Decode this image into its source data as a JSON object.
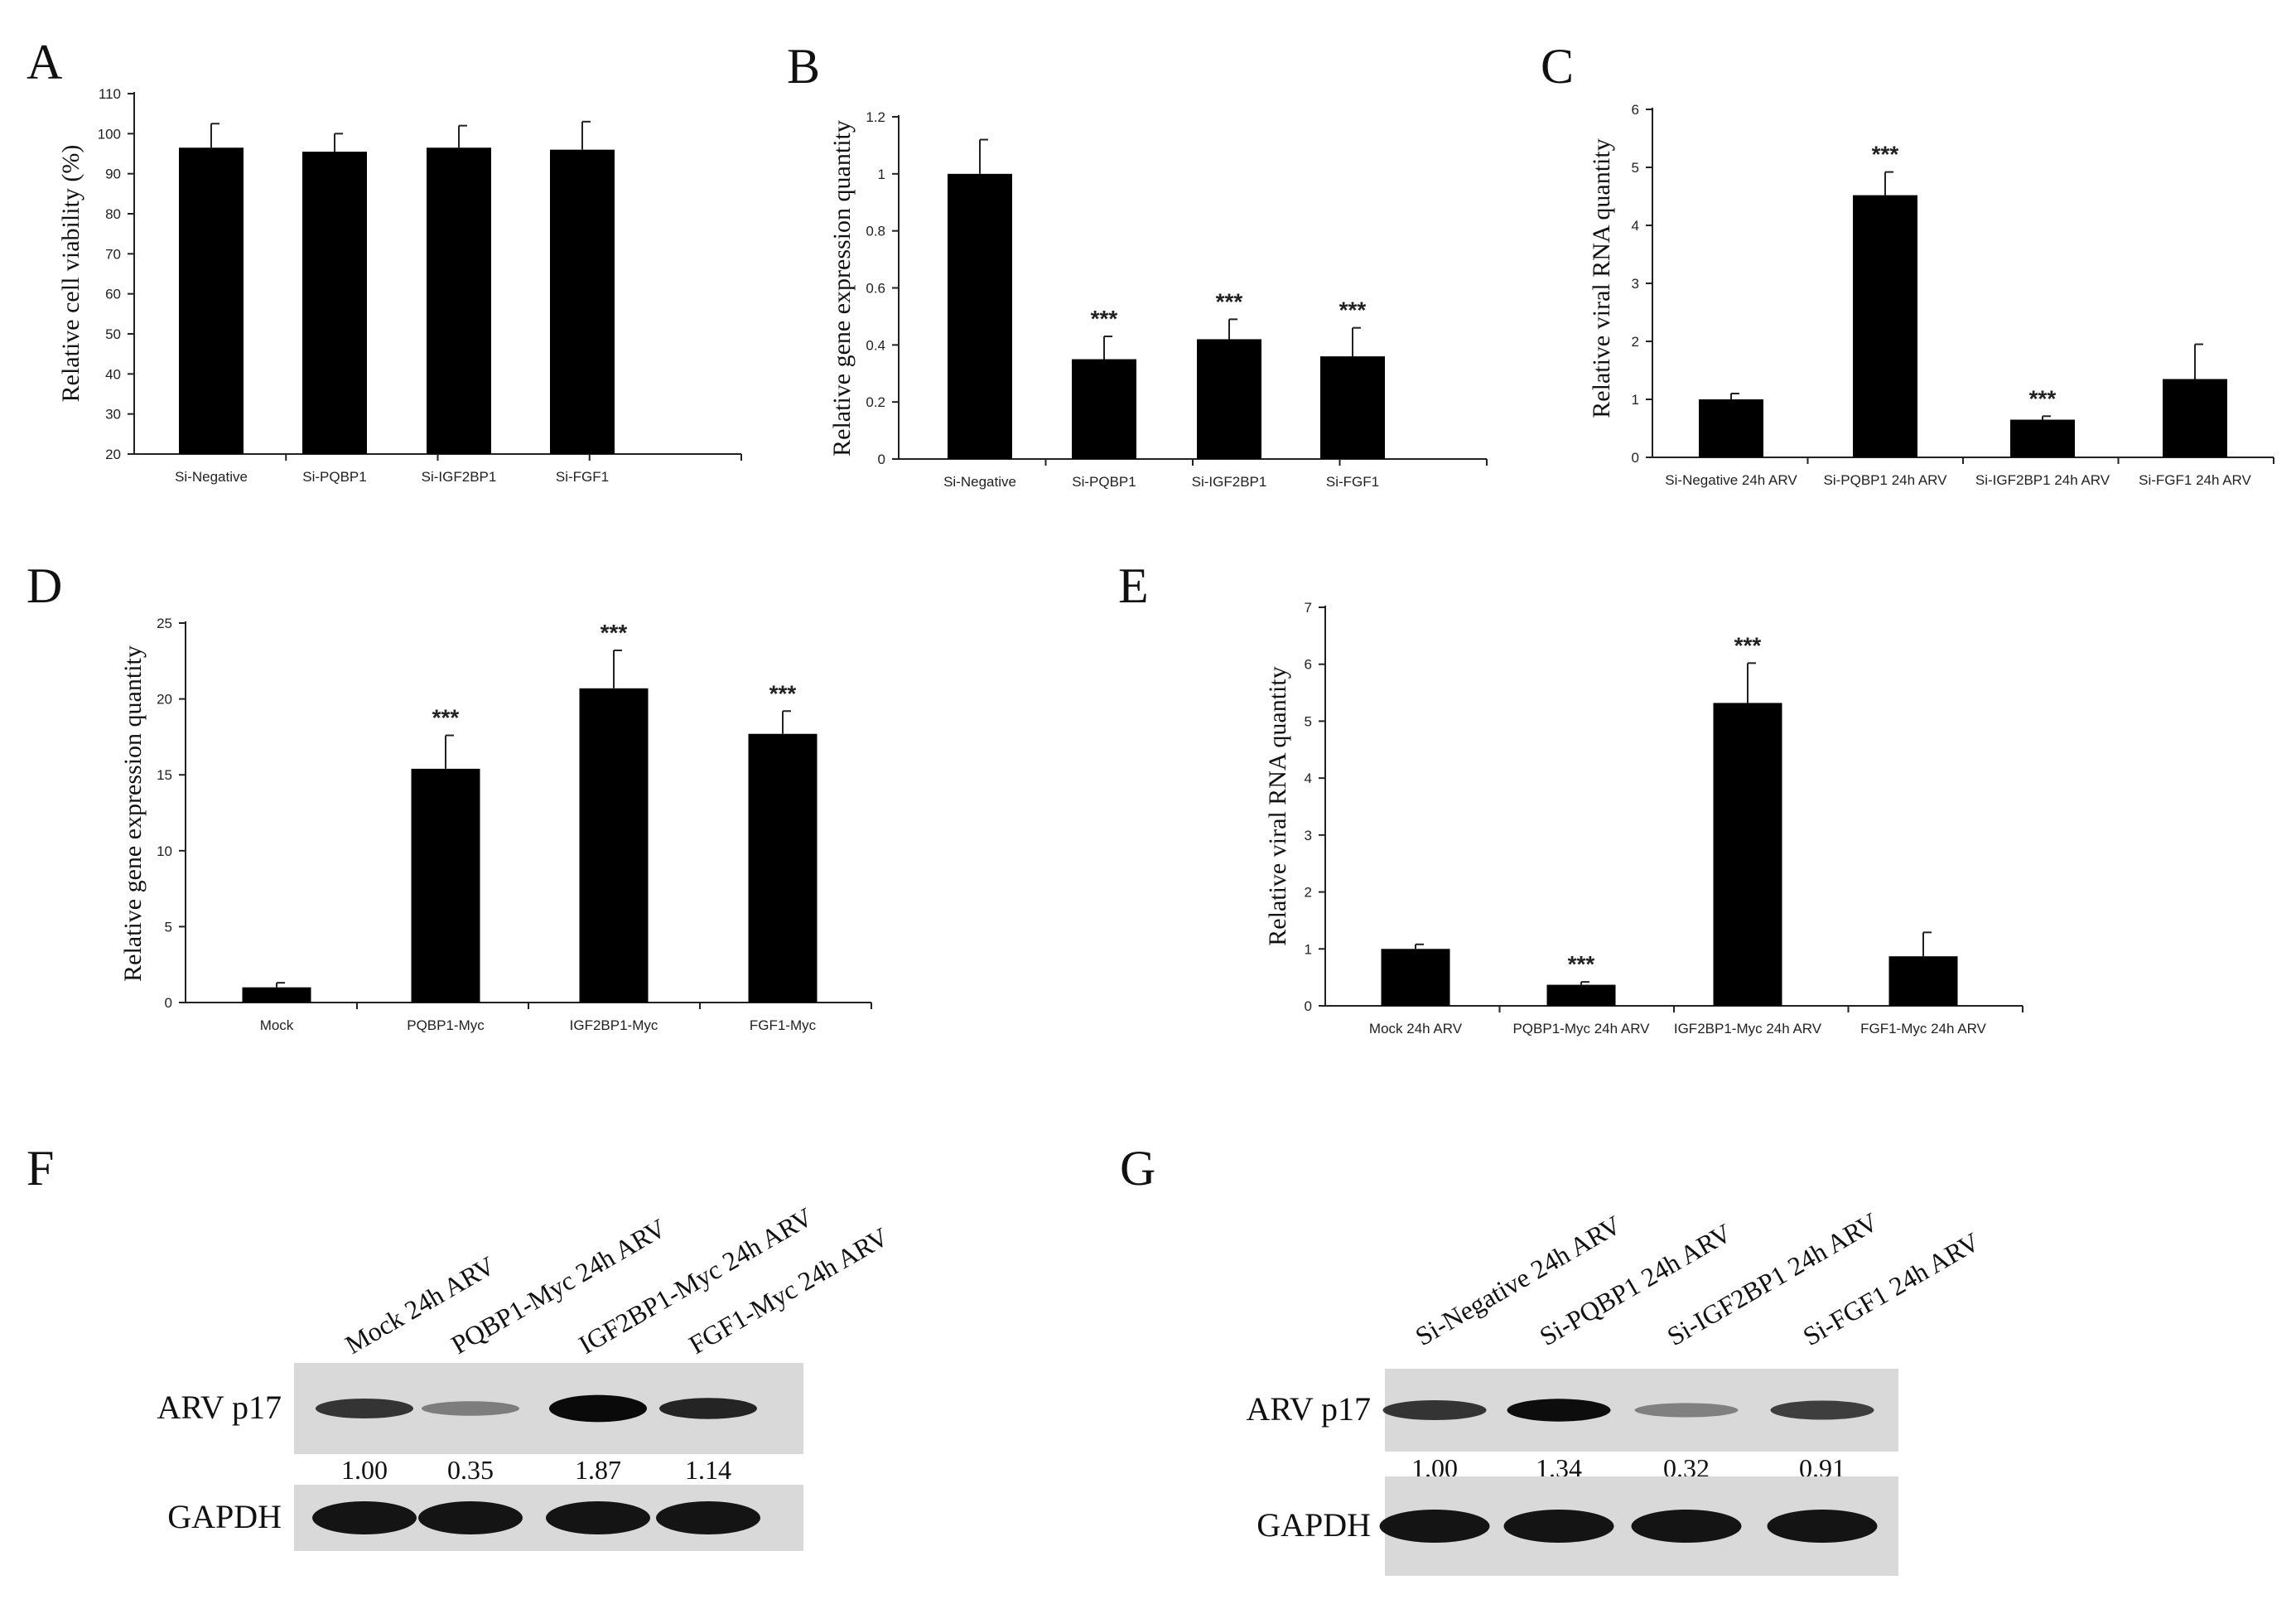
{
  "chart_data": [
    {
      "id": "A",
      "type": "bar",
      "panel_label": "A",
      "ylabel": "Relative cell viability (%)",
      "ylim": [
        20,
        110
      ],
      "yticks": [
        20,
        30,
        40,
        50,
        60,
        70,
        80,
        90,
        100,
        110
      ],
      "categories": [
        "Si-Negative",
        "Si-PQBP1",
        "Si-IGF2BP1",
        "Si-FGF1"
      ],
      "values": [
        96.5,
        95.5,
        96.5,
        96
      ],
      "errors": [
        6,
        4.5,
        5.5,
        7
      ],
      "significance": [
        "",
        "",
        "",
        ""
      ]
    },
    {
      "id": "B",
      "type": "bar",
      "panel_label": "B",
      "ylabel": "Relative gene expression  quantity",
      "ylim": [
        0,
        1.2
      ],
      "yticks": [
        0,
        0.2,
        0.4,
        0.6,
        0.8,
        1,
        1.2
      ],
      "categories": [
        "Si-Negative",
        "Si-PQBP1",
        "Si-IGF2BP1",
        "Si-FGF1"
      ],
      "values": [
        1.0,
        0.35,
        0.42,
        0.36
      ],
      "errors": [
        0.12,
        0.08,
        0.07,
        0.1
      ],
      "significance": [
        "",
        "***",
        "***",
        "***"
      ]
    },
    {
      "id": "C",
      "type": "bar",
      "panel_label": "C",
      "ylabel": "Relative viral RNA quantity",
      "ylim": [
        0,
        6
      ],
      "yticks": [
        0,
        1,
        2,
        3,
        4,
        5,
        6
      ],
      "categories": [
        "Si-Negative 24h ARV",
        "Si-PQBP1 24h ARV",
        "Si-IGF2BP1 24h ARV",
        "Si-FGF1 24h ARV"
      ],
      "values": [
        1.0,
        4.52,
        0.65,
        1.35
      ],
      "errors": [
        0.1,
        0.4,
        0.06,
        0.6
      ],
      "significance": [
        "",
        "***",
        "***",
        ""
      ]
    },
    {
      "id": "D",
      "type": "bar",
      "panel_label": "D",
      "ylabel": "Relative gene expression  quantity",
      "ylim": [
        0,
        25
      ],
      "yticks": [
        0,
        5,
        10,
        15,
        20,
        25
      ],
      "categories": [
        "Mock",
        "PQBP1-Myc",
        "IGF2BP1-Myc",
        "FGF1-Myc"
      ],
      "values": [
        1.0,
        15.4,
        20.7,
        17.7
      ],
      "errors": [
        0.3,
        2.2,
        2.5,
        1.5
      ],
      "significance": [
        "",
        "***",
        "***",
        "***"
      ]
    },
    {
      "id": "E",
      "type": "bar",
      "panel_label": "E",
      "ylabel": "Relative viral RNA quantity",
      "ylim": [
        0,
        7
      ],
      "yticks": [
        0,
        1,
        2,
        3,
        4,
        5,
        6,
        7
      ],
      "categories": [
        "Mock 24h ARV",
        "PQBP1-Myc 24h ARV",
        "IGF2BP1-Myc 24h ARV",
        "FGF1-Myc 24h ARV"
      ],
      "values": [
        1.0,
        0.37,
        5.32,
        0.87
      ],
      "errors": [
        0.08,
        0.05,
        0.7,
        0.42
      ],
      "significance": [
        "",
        "***",
        "***",
        ""
      ]
    }
  ],
  "blots": [
    {
      "panel_label": "F",
      "lanes": [
        "Mock 24h ARV",
        "PQBP1-Myc 24h ARV",
        "IGF2BP1-Myc 24h ARV",
        "FGF1-Myc 24h ARV"
      ],
      "rows": [
        {
          "label": "ARV p17",
          "intensity": [
            1.0,
            0.35,
            1.87,
            1.14
          ]
        },
        {
          "label": "GAPDH",
          "intensity": [
            1,
            1,
            1,
            1
          ]
        }
      ],
      "quantification": [
        "1.00",
        "0.35",
        "1.87",
        "1.14"
      ]
    },
    {
      "panel_label": "G",
      "lanes": [
        "Si-Negative 24h ARV",
        "Si-PQBP1 24h ARV",
        "Si-IGF2BP1 24h ARV",
        "Si-FGF1 24h ARV"
      ],
      "rows": [
        {
          "label": "ARV p17",
          "intensity": [
            1.0,
            1.34,
            0.32,
            0.91
          ]
        },
        {
          "label": "GAPDH",
          "intensity": [
            1,
            1,
            1,
            1
          ]
        }
      ],
      "quantification": [
        "1.00",
        "1.34",
        "0.32",
        "0.91"
      ]
    }
  ],
  "style": {
    "bar_color": "#000000",
    "axis_color": "#222222",
    "blot_bg": "#d9d9d9",
    "band_color": "#0a0a0a"
  }
}
